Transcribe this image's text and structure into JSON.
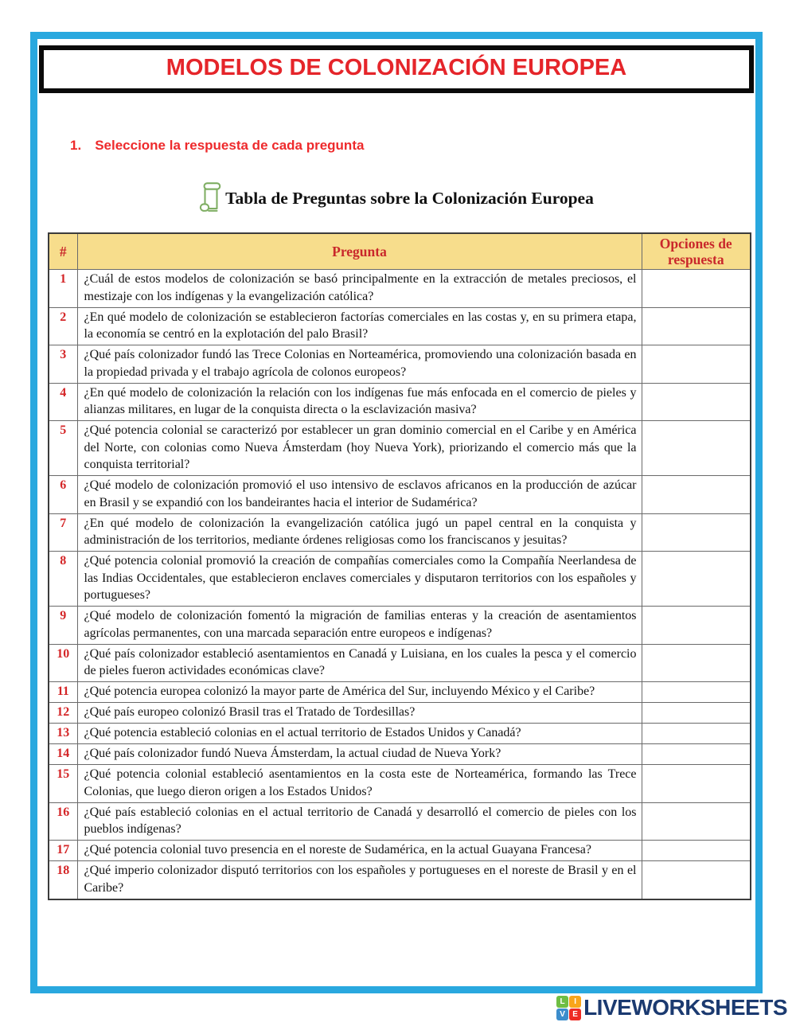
{
  "page": {
    "title": "MODELOS DE COLONIZACIÓN EUROPEA",
    "instruction_number": "1.",
    "instruction_text": "Seleccione la respuesta de cada pregunta",
    "subtitle": "Tabla de Preguntas sobre la Colonización Europea",
    "subtitle_icon": "scroll-icon"
  },
  "table": {
    "headers": {
      "num": "#",
      "question": "Pregunta",
      "options": "Opciones de respuesta"
    },
    "rows": [
      {
        "num": "1",
        "question": "¿Cuál de estos modelos de colonización se basó principalmente en la extracción de metales preciosos, el mestizaje con los indígenas y la evangelización católica?"
      },
      {
        "num": "2",
        "question": "¿En qué modelo de colonización se establecieron factorías comerciales en las costas y, en su primera etapa, la economía se centró en la explotación del palo Brasil?"
      },
      {
        "num": "3",
        "question": "¿Qué país colonizador fundó las Trece Colonias en Norteamérica, promoviendo una colonización basada en la propiedad privada y el trabajo agrícola de colonos europeos?"
      },
      {
        "num": "4",
        "question": "¿En qué modelo de colonización la relación con los indígenas fue más enfocada en el comercio de pieles y alianzas militares, en lugar de la conquista directa o la esclavización masiva?"
      },
      {
        "num": "5",
        "question": "¿Qué potencia colonial se caracterizó por establecer un gran dominio comercial en el Caribe y en América del Norte, con colonias como Nueva Ámsterdam (hoy Nueva York), priorizando el comercio más que la conquista territorial?"
      },
      {
        "num": "6",
        "question": "¿Qué modelo de colonización promovió el uso intensivo de esclavos africanos en la producción de azúcar en Brasil y se expandió con los bandeirantes hacia el interior de Sudamérica?"
      },
      {
        "num": "7",
        "question": "¿En qué modelo de colonización la evangelización católica jugó un papel central en la conquista y administración de los territorios, mediante órdenes religiosas como los franciscanos y jesuitas?"
      },
      {
        "num": "8",
        "question": "¿Qué potencia colonial promovió la creación de compañías comerciales como la Compañía Neerlandesa de las Indias Occidentales, que establecieron enclaves comerciales y disputaron territorios con los españoles y portugueses?"
      },
      {
        "num": "9",
        "question": "¿Qué modelo de colonización fomentó la migración de familias enteras y la creación de asentamientos agrícolas permanentes, con una marcada separación entre europeos e indígenas?"
      },
      {
        "num": "10",
        "question": "¿Qué país colonizador estableció asentamientos en Canadá y Luisiana, en los cuales la pesca y el comercio de pieles fueron actividades económicas clave?"
      },
      {
        "num": "11",
        "question": "¿Qué potencia europea colonizó la mayor parte de América del Sur, incluyendo México y el Caribe?"
      },
      {
        "num": "12",
        "question": "¿Qué país europeo colonizó Brasil tras el Tratado de Tordesillas?"
      },
      {
        "num": "13",
        "question": "¿Qué potencia estableció colonias en el actual territorio de Estados Unidos y Canadá?"
      },
      {
        "num": "14",
        "question": "¿Qué país colonizador fundó Nueva Ámsterdam, la actual ciudad de Nueva York?"
      },
      {
        "num": "15",
        "question": "¿Qué potencia colonial estableció asentamientos en la costa este de Norteamérica, formando las Trece Colonias, que luego dieron origen a los Estados Unidos?"
      },
      {
        "num": "16",
        "question": "¿Qué país estableció colonias en el actual territorio de Canadá y desarrolló el comercio de pieles con los pueblos indígenas?"
      },
      {
        "num": "17",
        "question": "¿Qué potencia colonial tuvo presencia en el noreste de Sudamérica, en la actual Guayana Francesa?"
      },
      {
        "num": "18",
        "question": "¿Qué imperio colonizador disputó territorios con los españoles y portugueses en el noreste de Brasil y en el Caribe?"
      }
    ]
  },
  "footer": {
    "brand": "LIVEWORKSHEETS",
    "logo_tiles": [
      {
        "letter": "L",
        "color": "#6fbe44"
      },
      {
        "letter": "I",
        "color": "#f9a51a"
      },
      {
        "letter": "V",
        "color": "#3c8dcc"
      },
      {
        "letter": "E",
        "color": "#ee2b24"
      }
    ]
  },
  "colors": {
    "frame_cyan": "#29a8df",
    "title_red": "#e5252a",
    "instruction_red": "#ee2a2c",
    "table_header_bg": "#f7dd8c",
    "table_header_red": "#c9272b",
    "row_number_red": "#d42527",
    "scroll_icon_green": "#7fae63",
    "wordmark_navy": "#1b3a70"
  }
}
